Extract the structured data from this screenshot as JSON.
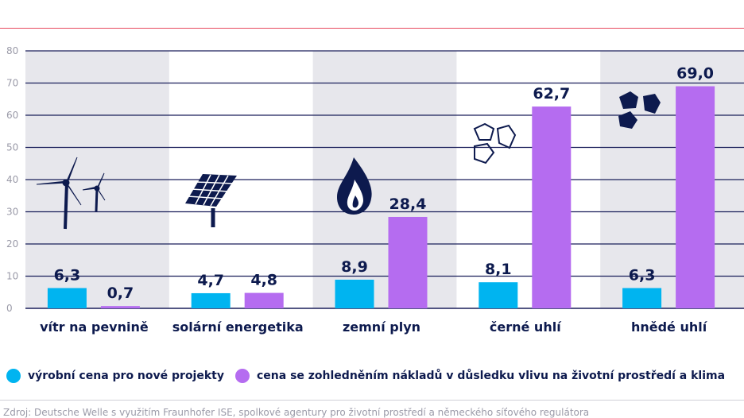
{
  "header": {
    "title": ""
  },
  "legend": {
    "series_1": "výrobní cena pro nové projekty",
    "series_2": "cena se zohledněním nákladů v důsledku vlivu na životní prostředí a klima"
  },
  "source": "Zdroj: Deutsche Welle s využitím Fraunhofer ISE, spolkové agentury pro životní prostředí a německého síťového regulátora",
  "colors": {
    "series_1": "#00b4f0",
    "series_2": "#b56cf0",
    "band": "#e7e7ec",
    "grid": "#1a1f5a",
    "text": "#0d1a4e",
    "accent": "#e0002a"
  },
  "icons": [
    "wind-turbine-icon",
    "solar-panel-icon",
    "gas-flame-icon",
    "hard-coal-icon",
    "lignite-icon"
  ],
  "chart_data": {
    "type": "bar",
    "categories": [
      "vítr na pevnině",
      "solární energetika",
      "zemní plyn",
      "černé uhlí",
      "hnědé uhlí"
    ],
    "series": [
      {
        "name": "výrobní cena pro nové projekty",
        "values": [
          6.3,
          4.7,
          8.9,
          8.1,
          6.3
        ],
        "labels": [
          "6,3",
          "4,7",
          "8,9",
          "8,1",
          "6,3"
        ]
      },
      {
        "name": "cena se zohledněním nákladů v důsledku vlivu na životní prostředí a klima",
        "values": [
          0.7,
          4.8,
          28.4,
          62.7,
          69.0
        ],
        "labels": [
          "0,7",
          "4,8",
          "28,4",
          "62,7",
          "69,0"
        ]
      }
    ],
    "yticks": [
      "0",
      "10",
      "20",
      "30",
      "40",
      "50",
      "60",
      "70",
      "80"
    ],
    "ylim": [
      0,
      80
    ],
    "grid": true,
    "legend_position": "bottom"
  }
}
